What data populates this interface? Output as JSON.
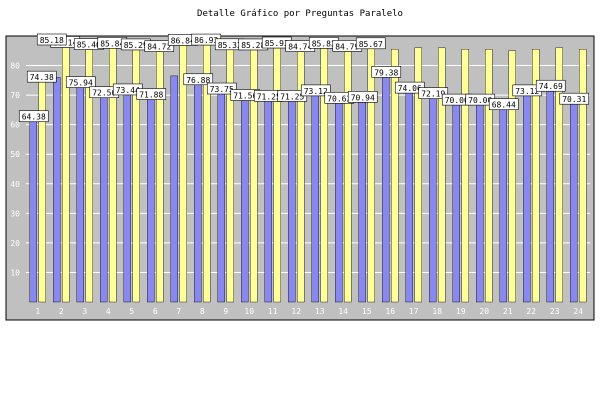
{
  "chart_data": {
    "type": "bar",
    "title": "Detalle Gráfico por Preguntas Paralelo",
    "xlabel": "",
    "ylabel": "",
    "ylim": [
      0,
      90
    ],
    "yticks": [
      10,
      20,
      30,
      40,
      50,
      60,
      70,
      80
    ],
    "grid": true,
    "legend": "none",
    "categories": [
      "1",
      "2",
      "3",
      "4",
      "5",
      "6",
      "7",
      "8",
      "9",
      "10",
      "11",
      "12",
      "13",
      "14",
      "15",
      "16",
      "17",
      "18",
      "19",
      "20",
      "21",
      "22",
      "23",
      "24"
    ],
    "series": [
      {
        "color": "#8888ee",
        "values": [
          64.38,
          76.0,
          75.94,
          72.5,
          73.44,
          71.88,
          76.5,
          76.88,
          73.75,
          71.56,
          71.25,
          71.25,
          73.12,
          70.62,
          70.94,
          79.38,
          74.06,
          72.19,
          70.0,
          70.0,
          68.44,
          73.12,
          74.69,
          70.31
        ],
        "labels": [
          "64.38",
          null,
          "75.94",
          "72.50",
          "73.44",
          "71.88",
          null,
          "76.88",
          "73.75",
          "71.56",
          "71.25",
          "71.25",
          "73.12",
          "70.62",
          "70.94",
          "79.38",
          "74.06",
          "72.19",
          "70.00",
          "70.00",
          "68.44",
          "73.12",
          "74.69",
          "70.31"
        ]
      },
      {
        "color": "#ffff99",
        "values": [
          74.38,
          86.14,
          85.4,
          85.84,
          85.29,
          84.72,
          86.84,
          86.93,
          85.33,
          85.28,
          85.93,
          84.74,
          85.83,
          84.79,
          85.67,
          85.5,
          86.0,
          86.0,
          85.5,
          85.5,
          85.0,
          85.5,
          86.0,
          85.5
        ],
        "labels": [
          "74.38",
          "86.14",
          "85.40",
          "85.84",
          "85.29",
          "84.72",
          "86.84",
          "86.93",
          "85.33",
          "85.28",
          "85.93",
          "84.74",
          "85.83",
          "84.79",
          "85.67",
          null,
          null,
          null,
          null,
          null,
          null,
          null,
          null,
          null
        ]
      }
    ],
    "extra_labels": [
      "85.18"
    ]
  },
  "colors": {
    "plot_bg": "#c0c0c0",
    "border": "#000000",
    "grid": "#ffffff",
    "label_bg": "#ffffff"
  }
}
